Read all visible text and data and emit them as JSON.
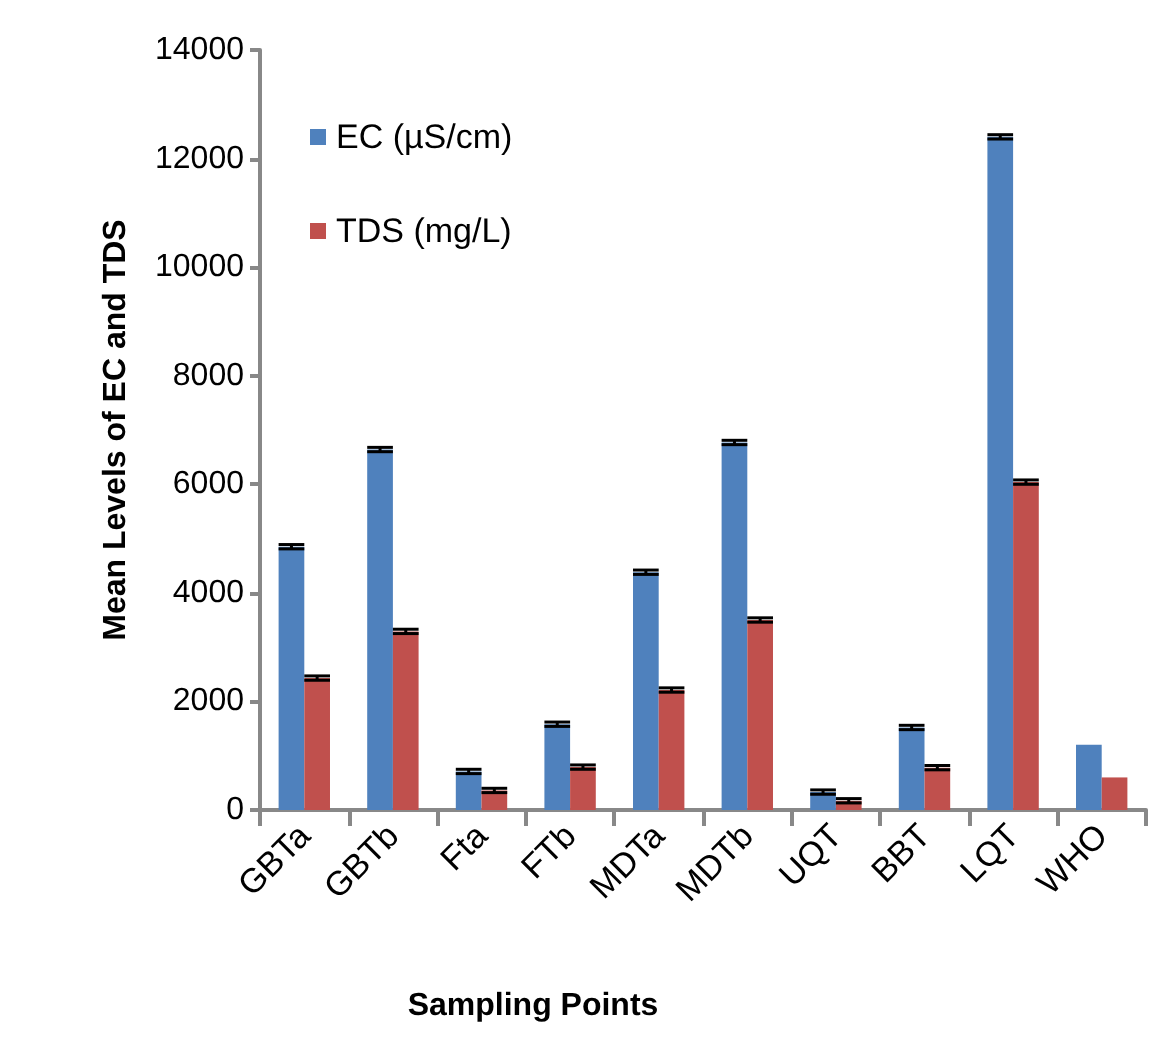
{
  "chart_data": {
    "type": "bar",
    "xlabel": "Sampling Points",
    "ylabel": "Mean Levels of EC and TDS",
    "categories": [
      "GBTa",
      "GBTb",
      "Fta",
      "FTb",
      "MDTa",
      "MDTb",
      "UQT",
      "BBT",
      "LQT",
      "WHO"
    ],
    "series": [
      {
        "name": "EC (µS/cm)",
        "color": "#4f81bd",
        "values": [
          4850,
          6640,
          710,
          1580,
          4380,
          6770,
          330,
          1520,
          12400,
          1200
        ],
        "errors": [
          40,
          40,
          40,
          40,
          40,
          40,
          40,
          40,
          40,
          null
        ]
      },
      {
        "name": "TDS (mg/L)",
        "color": "#c0504d",
        "values": [
          2430,
          3290,
          360,
          790,
          2210,
          3500,
          170,
          780,
          6040,
          600
        ],
        "errors": [
          40,
          40,
          40,
          40,
          40,
          40,
          40,
          40,
          40,
          null
        ]
      }
    ],
    "ylim": [
      0,
      14000
    ],
    "yticks": [
      0,
      2000,
      4000,
      6000,
      8000,
      10000,
      12000,
      14000
    ],
    "grid": false,
    "legend": "top left"
  }
}
